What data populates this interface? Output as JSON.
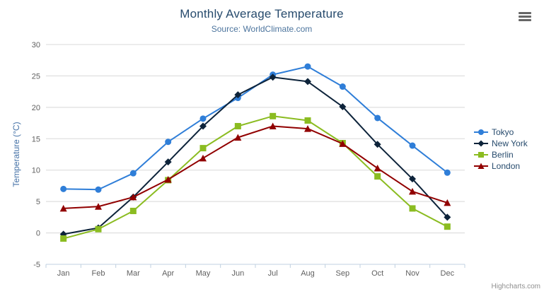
{
  "chart_data": {
    "type": "line",
    "title": "Monthly Average Temperature",
    "subtitle": "Source: WorldClimate.com",
    "credit": "Highcharts.com",
    "categories": [
      "Jan",
      "Feb",
      "Mar",
      "Apr",
      "May",
      "Jun",
      "Jul",
      "Aug",
      "Sep",
      "Oct",
      "Nov",
      "Dec"
    ],
    "series": [
      {
        "name": "Tokyo",
        "color": "#2f7ed8",
        "marker": "circle",
        "values": [
          7.0,
          6.9,
          9.5,
          14.5,
          18.2,
          21.5,
          25.2,
          26.5,
          23.3,
          18.3,
          13.9,
          9.6
        ]
      },
      {
        "name": "New York",
        "color": "#0d233a",
        "marker": "diamond",
        "values": [
          -0.2,
          0.8,
          5.7,
          11.3,
          17.0,
          22.0,
          24.8,
          24.1,
          20.1,
          14.1,
          8.6,
          2.5
        ]
      },
      {
        "name": "Berlin",
        "color": "#8bbc21",
        "marker": "square",
        "values": [
          -0.9,
          0.6,
          3.5,
          8.4,
          13.5,
          17.0,
          18.6,
          17.9,
          14.3,
          9.0,
          3.9,
          1.0
        ]
      },
      {
        "name": "London",
        "color": "#910000",
        "marker": "triangle",
        "values": [
          3.9,
          4.2,
          5.7,
          8.5,
          11.9,
          15.2,
          17.0,
          16.6,
          14.2,
          10.3,
          6.6,
          4.8
        ]
      }
    ],
    "xlabel": "",
    "ylabel": "Temperature (°C)",
    "ylim": [
      -5,
      30
    ],
    "ytick_interval": 5,
    "yticks": [
      -5,
      0,
      5,
      10,
      15,
      20,
      25,
      30
    ],
    "grid": true,
    "legend_position": "right"
  },
  "icons": {
    "export_menu": "hamburger-icon"
  },
  "colors": {
    "title": "#274b6d",
    "subtitle": "#4d759e",
    "axis_labels": "#606060",
    "yaxis_title": "#4572a7",
    "gridline": "#d8d8d8",
    "axis_line": "#c0d0e0",
    "legend_text": "#274b6d",
    "credit": "#909090",
    "menu_icon": "#666666",
    "background": "#ffffff"
  }
}
